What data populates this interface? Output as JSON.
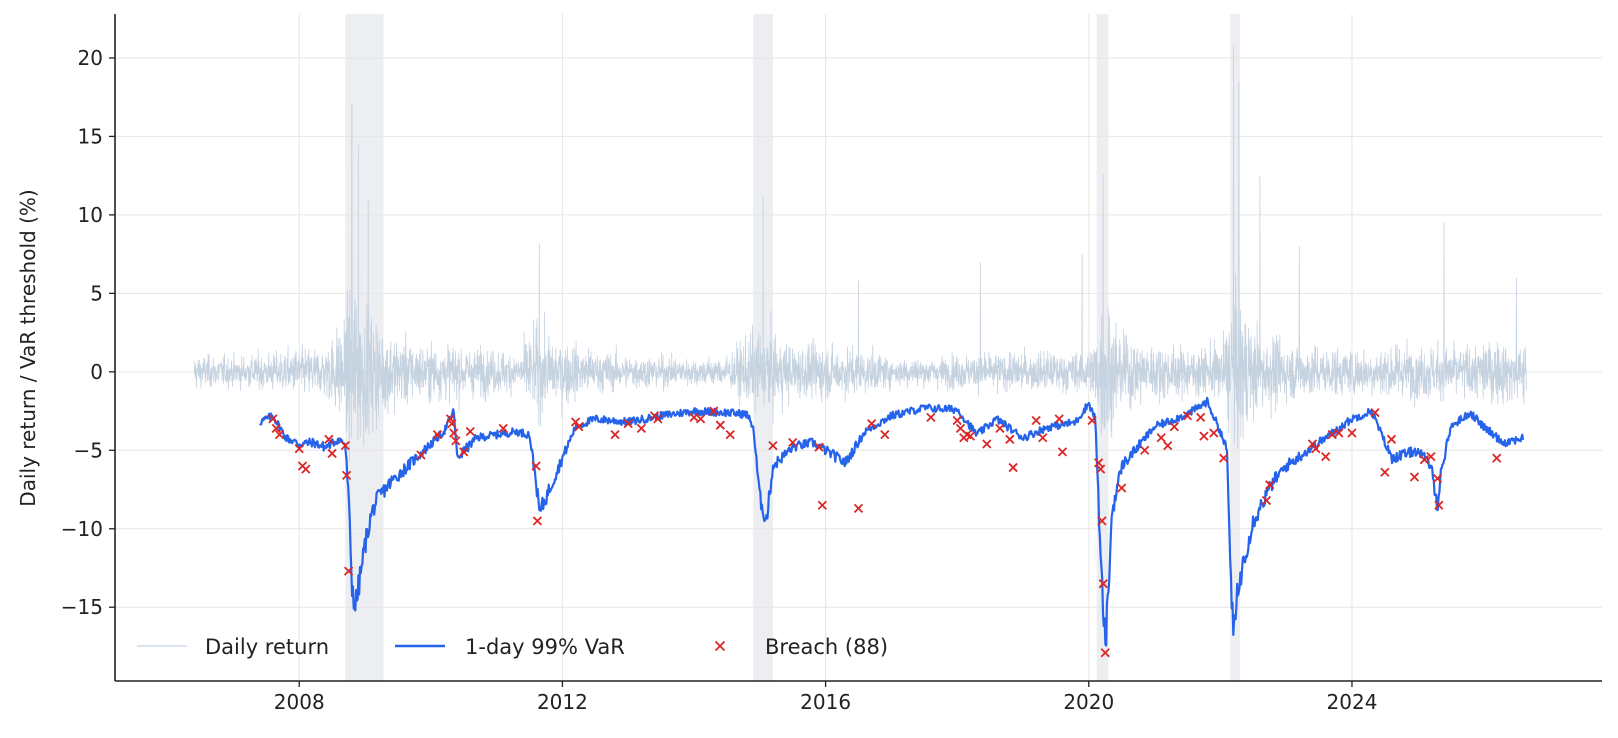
{
  "chart_data": {
    "type": "line",
    "title": "",
    "xlabel": "",
    "ylabel": "Daily return / VaR threshold (%)",
    "xlim": [
      2005.2,
      2027.8
    ],
    "ylim": [
      -19.7,
      22.8
    ],
    "x_ticks": [
      2008,
      2012,
      2016,
      2020,
      2024
    ],
    "x_tick_labels": [
      "2008",
      "2012",
      "2016",
      "2020",
      "2024"
    ],
    "y_ticks": [
      -15,
      -10,
      -5,
      0,
      5,
      10,
      15,
      20
    ],
    "y_tick_labels": [
      "−15",
      "−10",
      "−5",
      "0",
      "5",
      "10",
      "15",
      "20"
    ],
    "grid": true,
    "legend_position": "bottom-left",
    "colors": {
      "daily_return": "#c5d2e0",
      "var": "#2563eb",
      "breach": "#dc2626",
      "shade": "#eceef1"
    },
    "shaded_periods": [
      [
        2008.7,
        2009.28
      ],
      [
        2014.9,
        2015.2
      ],
      [
        2020.12,
        2020.3
      ],
      [
        2022.15,
        2022.3
      ]
    ],
    "daily_return": {
      "name": "Daily return",
      "x_start": 2006.4,
      "x_end": 2026.65,
      "volatility_anchors": [
        [
          2006.4,
          1.6
        ],
        [
          2007.0,
          1.4
        ],
        [
          2007.6,
          1.8
        ],
        [
          2008.0,
          2.2
        ],
        [
          2008.4,
          2.4
        ],
        [
          2008.7,
          5.5
        ],
        [
          2008.85,
          9.0
        ],
        [
          2009.0,
          6.5
        ],
        [
          2009.3,
          4.0
        ],
        [
          2009.8,
          2.6
        ],
        [
          2010.3,
          2.6
        ],
        [
          2010.8,
          2.2
        ],
        [
          2011.3,
          1.8
        ],
        [
          2011.6,
          4.2
        ],
        [
          2011.9,
          3.2
        ],
        [
          2012.5,
          2.0
        ],
        [
          2013.0,
          1.6
        ],
        [
          2013.5,
          1.5
        ],
        [
          2014.0,
          1.3
        ],
        [
          2014.5,
          1.4
        ],
        [
          2014.9,
          3.8
        ],
        [
          2015.1,
          4.0
        ],
        [
          2015.5,
          2.6
        ],
        [
          2016.0,
          2.6
        ],
        [
          2016.5,
          2.2
        ],
        [
          2017.0,
          1.4
        ],
        [
          2017.5,
          1.3
        ],
        [
          2018.0,
          1.6
        ],
        [
          2018.5,
          1.8
        ],
        [
          2019.0,
          1.8
        ],
        [
          2019.5,
          1.9
        ],
        [
          2020.0,
          1.9
        ],
        [
          2020.15,
          4.5
        ],
        [
          2020.25,
          7.5
        ],
        [
          2020.45,
          3.8
        ],
        [
          2020.9,
          2.6
        ],
        [
          2021.5,
          2.2
        ],
        [
          2022.0,
          2.6
        ],
        [
          2022.15,
          6.0
        ],
        [
          2022.25,
          7.5
        ],
        [
          2022.5,
          4.2
        ],
        [
          2023.0,
          2.8
        ],
        [
          2023.5,
          2.4
        ],
        [
          2024.0,
          2.2
        ],
        [
          2024.5,
          2.4
        ],
        [
          2025.0,
          2.6
        ],
        [
          2025.5,
          2.4
        ],
        [
          2026.0,
          2.8
        ],
        [
          2026.65,
          3.0
        ]
      ],
      "spikes": [
        [
          2008.8,
          17.0
        ],
        [
          2008.9,
          14.5
        ],
        [
          2009.05,
          11.0
        ],
        [
          2011.65,
          8.2
        ],
        [
          2015.05,
          11.2
        ],
        [
          2016.5,
          5.8
        ],
        [
          2018.35,
          7.0
        ],
        [
          2019.9,
          7.5
        ],
        [
          2020.22,
          12.6
        ],
        [
          2022.2,
          20.8
        ],
        [
          2022.28,
          18.5
        ],
        [
          2022.6,
          12.5
        ],
        [
          2023.2,
          8.0
        ],
        [
          2025.4,
          9.5
        ],
        [
          2026.5,
          6.0
        ]
      ]
    },
    "var_series": {
      "name": "1-day 99% VaR",
      "x": [
        2007.4,
        2007.6,
        2007.8,
        2008.0,
        2008.2,
        2008.4,
        2008.6,
        2008.7,
        2008.75,
        2008.8,
        2008.85,
        2008.9,
        2009.0,
        2009.1,
        2009.2,
        2009.4,
        2009.7,
        2010.0,
        2010.2,
        2010.35,
        2010.4,
        2010.7,
        2011.0,
        2011.3,
        2011.5,
        2011.6,
        2011.65,
        2011.8,
        2012.0,
        2012.2,
        2012.5,
        2013.0,
        2013.5,
        2014.0,
        2014.5,
        2014.8,
        2014.9,
        2015.0,
        2015.1,
        2015.2,
        2015.5,
        2015.8,
        2016.0,
        2016.3,
        2016.6,
        2017.0,
        2017.5,
        2018.0,
        2018.3,
        2018.6,
        2019.0,
        2019.4,
        2019.8,
        2020.0,
        2020.1,
        2020.18,
        2020.25,
        2020.3,
        2020.35,
        2020.5,
        2020.8,
        2021.0,
        2021.5,
        2021.8,
        2022.0,
        2022.1,
        2022.15,
        2022.2,
        2022.25,
        2022.35,
        2022.5,
        2022.8,
        2023.0,
        2023.5,
        2024.0,
        2024.3,
        2024.6,
        2025.0,
        2025.2,
        2025.3,
        2025.35,
        2025.5,
        2025.8,
        2026.0,
        2026.3,
        2026.6
      ],
      "values": [
        -3.2,
        -2.8,
        -4.2,
        -4.6,
        -4.5,
        -4.8,
        -4.3,
        -4.6,
        -8.0,
        -13.5,
        -15.0,
        -13.8,
        -11.0,
        -9.0,
        -8.0,
        -7.0,
        -5.8,
        -4.6,
        -3.8,
        -2.5,
        -5.5,
        -4.2,
        -4.0,
        -3.8,
        -4.0,
        -7.0,
        -9.0,
        -7.5,
        -5.5,
        -3.5,
        -3.0,
        -3.2,
        -2.8,
        -2.5,
        -2.6,
        -2.7,
        -3.5,
        -8.0,
        -9.5,
        -6.0,
        -4.8,
        -4.5,
        -5.0,
        -5.8,
        -3.8,
        -2.8,
        -2.3,
        -2.4,
        -4.0,
        -3.0,
        -4.2,
        -3.5,
        -3.2,
        -2.0,
        -3.0,
        -12.0,
        -17.5,
        -14.0,
        -9.0,
        -6.0,
        -4.5,
        -3.5,
        -2.7,
        -1.9,
        -3.8,
        -5.0,
        -12.0,
        -17.2,
        -14.5,
        -12.0,
        -9.5,
        -7.0,
        -6.0,
        -4.5,
        -3.0,
        -2.5,
        -5.5,
        -5.0,
        -6.0,
        -8.5,
        -6.5,
        -3.5,
        -2.6,
        -3.5,
        -4.5,
        -4.2
      ]
    },
    "breaches": {
      "name": "Breach (88)",
      "points": [
        [
          2007.6,
          -3.0
        ],
        [
          2007.65,
          -3.6
        ],
        [
          2007.7,
          -4.0
        ],
        [
          2008.0,
          -4.9
        ],
        [
          2008.05,
          -6.0
        ],
        [
          2008.1,
          -6.2
        ],
        [
          2008.45,
          -4.3
        ],
        [
          2008.5,
          -5.2
        ],
        [
          2008.7,
          -4.7
        ],
        [
          2008.72,
          -6.6
        ],
        [
          2008.75,
          -12.7
        ],
        [
          2009.85,
          -5.3
        ],
        [
          2010.1,
          -4.0
        ],
        [
          2010.3,
          -3.0
        ],
        [
          2010.32,
          -3.3
        ],
        [
          2010.35,
          -3.9
        ],
        [
          2010.38,
          -4.4
        ],
        [
          2010.5,
          -5.1
        ],
        [
          2010.6,
          -3.8
        ],
        [
          2011.1,
          -3.6
        ],
        [
          2011.6,
          -6.0
        ],
        [
          2011.62,
          -9.5
        ],
        [
          2012.2,
          -3.2
        ],
        [
          2012.25,
          -3.5
        ],
        [
          2012.8,
          -4.0
        ],
        [
          2013.0,
          -3.3
        ],
        [
          2013.2,
          -3.6
        ],
        [
          2013.4,
          -2.8
        ],
        [
          2013.45,
          -3.0
        ],
        [
          2014.0,
          -2.9
        ],
        [
          2014.1,
          -3.0
        ],
        [
          2014.3,
          -2.5
        ],
        [
          2014.4,
          -3.4
        ],
        [
          2014.55,
          -4.0
        ],
        [
          2015.2,
          -4.7
        ],
        [
          2015.5,
          -4.5
        ],
        [
          2015.9,
          -4.8
        ],
        [
          2015.95,
          -8.5
        ],
        [
          2016.5,
          -8.7
        ],
        [
          2016.7,
          -3.3
        ],
        [
          2016.9,
          -4.0
        ],
        [
          2017.6,
          -2.9
        ],
        [
          2018.0,
          -3.1
        ],
        [
          2018.05,
          -3.6
        ],
        [
          2018.1,
          -4.2
        ],
        [
          2018.15,
          -4.0
        ],
        [
          2018.2,
          -4.1
        ],
        [
          2018.45,
          -4.6
        ],
        [
          2018.65,
          -3.6
        ],
        [
          2018.8,
          -4.3
        ],
        [
          2018.85,
          -6.1
        ],
        [
          2019.2,
          -3.1
        ],
        [
          2019.3,
          -4.2
        ],
        [
          2019.55,
          -3.0
        ],
        [
          2019.6,
          -5.1
        ],
        [
          2020.05,
          -3.1
        ],
        [
          2020.15,
          -5.8
        ],
        [
          2020.18,
          -6.2
        ],
        [
          2020.2,
          -9.5
        ],
        [
          2020.22,
          -13.5
        ],
        [
          2020.25,
          -17.9
        ],
        [
          2020.5,
          -7.4
        ],
        [
          2020.85,
          -5.0
        ],
        [
          2021.1,
          -4.2
        ],
        [
          2021.2,
          -4.7
        ],
        [
          2021.3,
          -3.5
        ],
        [
          2021.5,
          -2.8
        ],
        [
          2021.7,
          -2.9
        ],
        [
          2021.75,
          -4.1
        ],
        [
          2021.9,
          -3.9
        ],
        [
          2022.05,
          -5.5
        ],
        [
          2022.7,
          -8.2
        ],
        [
          2022.75,
          -7.2
        ],
        [
          2023.4,
          -4.6
        ],
        [
          2023.45,
          -4.9
        ],
        [
          2023.6,
          -5.4
        ],
        [
          2023.7,
          -4.0
        ],
        [
          2023.8,
          -3.9
        ],
        [
          2024.0,
          -3.9
        ],
        [
          2024.35,
          -2.6
        ],
        [
          2024.5,
          -6.4
        ],
        [
          2024.6,
          -4.3
        ],
        [
          2024.95,
          -6.7
        ],
        [
          2025.1,
          -5.6
        ],
        [
          2025.2,
          -5.4
        ],
        [
          2025.3,
          -6.8
        ],
        [
          2025.32,
          -8.5
        ],
        [
          2026.2,
          -5.5
        ]
      ]
    },
    "legend": [
      {
        "key": "daily_return",
        "label": "Daily return"
      },
      {
        "key": "var",
        "label": "1-day 99% VaR"
      },
      {
        "key": "breach",
        "label": "Breach (88)"
      }
    ]
  }
}
